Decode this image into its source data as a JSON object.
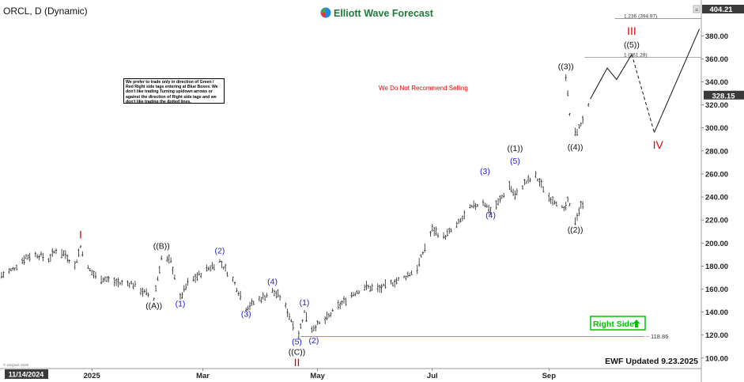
{
  "symbol_label": "ORCL, D (Dynamic)",
  "brand": {
    "name": "Elliott Wave Forecast",
    "logo_colors": [
      "#e53935",
      "#43a047",
      "#1e88e5"
    ]
  },
  "disclaimer": "We prefer to trade only in direction of Green / Red Right side tags entering at Blue Boxes. We don't like trading Turning up/down arrows or against the direction of Right side tags and we don't like trading the dotted lines.",
  "warning_text": "We Do Not Recommend Selling",
  "right_side_tag": "Right Side",
  "updated_text": "EWF Updated 9.23.2025",
  "source_tag": "© eSignal, 2025",
  "colors": {
    "red": "#e00000",
    "blue": "#1a1adb",
    "green": "#00c000",
    "black": "#111111",
    "axis_box": "#333333"
  },
  "chart_data": {
    "type": "ohlc",
    "x_axis": {
      "type": "date",
      "start": "2024-11-14",
      "end": "2025-11-21",
      "ticks": [
        {
          "label": "11/14/2024",
          "date": "2024-11-14",
          "highlight": true
        },
        {
          "label": "2025",
          "date": "2025-01-01"
        },
        {
          "label": "Mar",
          "date": "2025-03-01"
        },
        {
          "label": "May",
          "date": "2025-05-01"
        },
        {
          "label": "Jul",
          "date": "2025-07-01"
        },
        {
          "label": "Sep",
          "date": "2025-09-01"
        }
      ]
    },
    "y_axis": {
      "range": [
        93,
        407
      ],
      "ticks": [
        100,
        120,
        140,
        160,
        180,
        200,
        220,
        240,
        260,
        280,
        300,
        320,
        340,
        360,
        380
      ],
      "top_label": "404.21",
      "last_price_label": "328.15",
      "last_price": 328.15
    },
    "price_path": [
      [
        "2024-11-14",
        172
      ],
      [
        "2024-11-20",
        177
      ],
      [
        "2024-11-27",
        188
      ],
      [
        "2024-12-03",
        190
      ],
      [
        "2024-12-09",
        186
      ],
      [
        "2024-12-13",
        194
      ],
      [
        "2024-12-18",
        190
      ],
      [
        "2024-12-23",
        180
      ],
      [
        "2024-12-26",
        197
      ],
      [
        "2024-12-30",
        178
      ],
      [
        "2025-01-03",
        171
      ],
      [
        "2025-01-10",
        168
      ],
      [
        "2025-01-16",
        165
      ],
      [
        "2025-01-22",
        165
      ],
      [
        "2025-01-28",
        158
      ],
      [
        "2025-02-03",
        152
      ],
      [
        "2025-02-07",
        187
      ],
      [
        "2025-02-12",
        184
      ],
      [
        "2025-02-17",
        152
      ],
      [
        "2025-02-21",
        165
      ],
      [
        "2025-03-03",
        177
      ],
      [
        "2025-03-10",
        184
      ],
      [
        "2025-03-17",
        168
      ],
      [
        "2025-03-24",
        144
      ],
      [
        "2025-03-31",
        151
      ],
      [
        "2025-04-07",
        158
      ],
      [
        "2025-04-12",
        152
      ],
      [
        "2025-04-17",
        133
      ],
      [
        "2025-04-21",
        121
      ],
      [
        "2025-04-24",
        140
      ],
      [
        "2025-04-28",
        126
      ],
      [
        "2025-05-05",
        133
      ],
      [
        "2025-05-12",
        145
      ],
      [
        "2025-05-19",
        155
      ],
      [
        "2025-05-26",
        162
      ],
      [
        "2025-06-03",
        160
      ],
      [
        "2025-06-09",
        165
      ],
      [
        "2025-06-16",
        170
      ],
      [
        "2025-06-23",
        178
      ],
      [
        "2025-06-27",
        196
      ],
      [
        "2025-07-01",
        212
      ],
      [
        "2025-07-07",
        205
      ],
      [
        "2025-07-14",
        215
      ],
      [
        "2025-07-21",
        230
      ],
      [
        "2025-07-28",
        236
      ],
      [
        "2025-08-01",
        228
      ],
      [
        "2025-08-05",
        235
      ],
      [
        "2025-08-11",
        250
      ],
      [
        "2025-08-14",
        241
      ],
      [
        "2025-08-19",
        252
      ],
      [
        "2025-08-25",
        258
      ],
      [
        "2025-09-01",
        240
      ],
      [
        "2025-09-05",
        236
      ],
      [
        "2025-09-09",
        228
      ],
      [
        "2025-09-11",
        236
      ],
      [
        "2025-09-15",
        220
      ],
      [
        "2025-09-18",
        232
      ],
      [
        "2025-09-22",
        242
      ]
    ],
    "breakout_path": [
      [
        "2025-09-10",
        345
      ],
      [
        "2025-09-12",
        312
      ],
      [
        "2025-09-15",
        295
      ],
      [
        "2025-09-17",
        300
      ],
      [
        "2025-09-19",
        308
      ],
      [
        "2025-09-22",
        318
      ],
      [
        "2025-09-23",
        328.15
      ]
    ],
    "projection_solid": [
      [
        "2025-09-23",
        325
      ],
      [
        "2025-10-02",
        352
      ],
      [
        "2025-10-07",
        342
      ],
      [
        "2025-10-15",
        364
      ]
    ],
    "projection_dashed": [
      [
        "2025-10-15",
        364
      ],
      [
        "2025-10-27",
        296
      ]
    ],
    "projection_final": [
      [
        "2025-10-27",
        296
      ],
      [
        "2025-11-20",
        386
      ]
    ],
    "fib_levels": [
      {
        "label": "1.236 (394.97)",
        "value": 394.97,
        "start": "2025-10-06",
        "end": "2025-11-21"
      },
      {
        "label": "1 (361.28)",
        "value": 361.28,
        "start": "2025-09-20",
        "end": "2025-11-21"
      }
    ],
    "support_line": {
      "label": "118.86",
      "value": 118.86,
      "start": "2025-04-22",
      "end": "2025-11-21",
      "color": "#00c000"
    },
    "wave_labels": [
      {
        "text": "I",
        "date": "2024-12-26",
        "price": 204,
        "color": "red"
      },
      {
        "text": "((A))",
        "date": "2025-02-03",
        "price": 143,
        "color": "black"
      },
      {
        "text": "((B))",
        "date": "2025-02-07",
        "price": 195,
        "color": "black"
      },
      {
        "text": "(1)",
        "date": "2025-02-17",
        "price": 145,
        "color": "blue"
      },
      {
        "text": "(2)",
        "date": "2025-03-10",
        "price": 191,
        "color": "blue"
      },
      {
        "text": "(3)",
        "date": "2025-03-24",
        "price": 136,
        "color": "blue"
      },
      {
        "text": "(4)",
        "date": "2025-04-07",
        "price": 164,
        "color": "blue"
      },
      {
        "text": "(5)",
        "date": "2025-04-20",
        "price": 112,
        "color": "blue"
      },
      {
        "text": "((C))",
        "date": "2025-04-20",
        "price": 103,
        "color": "black"
      },
      {
        "text": "II",
        "date": "2025-04-20",
        "price": 93,
        "color": "red"
      },
      {
        "text": "(1)",
        "date": "2025-04-24",
        "price": 146,
        "color": "blue"
      },
      {
        "text": "(2)",
        "date": "2025-04-29",
        "price": 113,
        "color": "blue"
      },
      {
        "text": "(3)",
        "date": "2025-07-29",
        "price": 260,
        "color": "blue"
      },
      {
        "text": "(4)",
        "date": "2025-08-01",
        "price": 222,
        "color": "blue"
      },
      {
        "text": "(5)",
        "date": "2025-08-14",
        "price": 269,
        "color": "blue"
      },
      {
        "text": "((1))",
        "date": "2025-08-14",
        "price": 280,
        "color": "black"
      },
      {
        "text": "((2))",
        "date": "2025-09-15",
        "price": 209,
        "color": "black"
      },
      {
        "text": "((3))",
        "date": "2025-09-10",
        "price": 351,
        "color": "black"
      },
      {
        "text": "((4))",
        "date": "2025-09-15",
        "price": 281,
        "color": "black"
      },
      {
        "text": "((5))",
        "date": "2025-10-15",
        "price": 370,
        "color": "black"
      },
      {
        "text": "III",
        "date": "2025-10-15",
        "price": 381,
        "color": "red"
      },
      {
        "text": "IV",
        "date": "2025-10-29",
        "price": 282,
        "color": "red"
      }
    ]
  }
}
